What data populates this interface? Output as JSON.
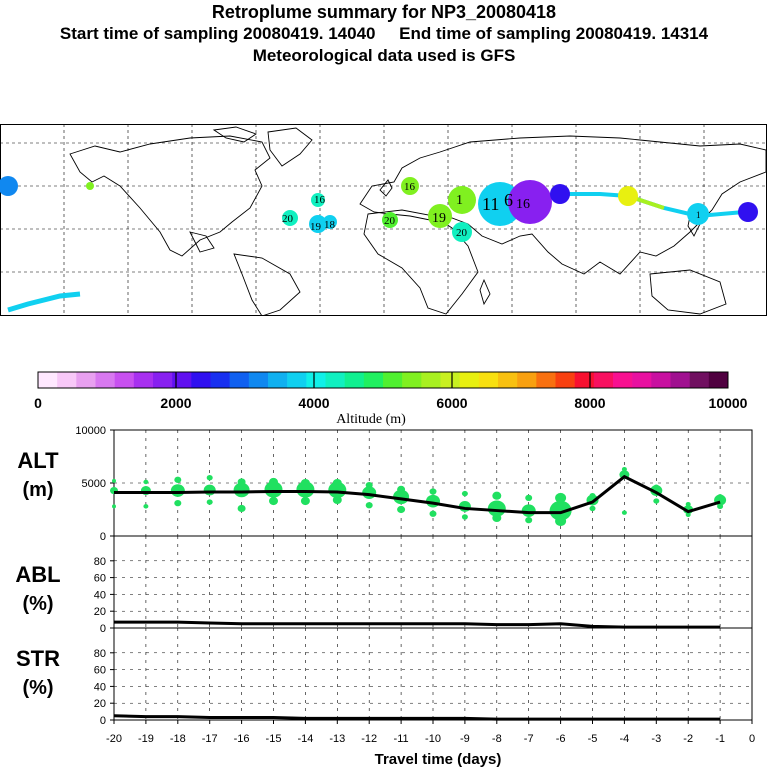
{
  "header": {
    "title": "Retroplume summary for NP3_20080418",
    "sampling": "Start time of sampling 20080419. 14040     End time of sampling 20080419. 14314",
    "met": "Meteorological data used is GFS"
  },
  "colors": {
    "scale": [
      "#ffe8ff",
      "#f8c8f8",
      "#e8a0f0",
      "#d878f0",
      "#c850f0",
      "#a830f0",
      "#8820f0",
      "#6010f0",
      "#3010f0",
      "#1830f0",
      "#1060f0",
      "#1088f0",
      "#10b0f0",
      "#10d0f0",
      "#10f0e8",
      "#10f0c0",
      "#10f090",
      "#20f060",
      "#50f030",
      "#80f020",
      "#a8f020",
      "#c8f020",
      "#e8f010",
      "#f8e010",
      "#f8c010",
      "#f8a010",
      "#f87010",
      "#f84010",
      "#f81030",
      "#f81060",
      "#f81090",
      "#e810a0",
      "#c810a0",
      "#a01090",
      "#701060",
      "#500040"
    ],
    "plume": "#20e060",
    "line": "#000000"
  },
  "map_labels": [
    "16",
    "20",
    "19",
    "18",
    "20",
    "16",
    "19",
    "1",
    "11",
    "6",
    "16",
    "1",
    "20"
  ],
  "chart_data": [
    {
      "type": "colorbar",
      "title": "Altitude (m)",
      "tick_labels": [
        "0",
        "2000",
        "4000",
        "6000",
        "8000",
        "10000"
      ],
      "range": [
        0,
        10000
      ]
    },
    {
      "type": "scatter",
      "panel_label": [
        "ALT",
        "(m)"
      ],
      "ylim": [
        0,
        10000
      ],
      "yticks": [
        "0",
        "5000",
        "10000"
      ],
      "x": [
        -20,
        -19,
        -18,
        -17,
        -16,
        -15,
        -14,
        -13,
        -12,
        -11,
        -10,
        -9,
        -8,
        -7,
        -6,
        -5,
        -4,
        -3,
        -2,
        -1
      ],
      "mean_altitude": [
        4100,
        4100,
        4100,
        4150,
        4150,
        4200,
        4200,
        4150,
        3900,
        3500,
        3100,
        2600,
        2400,
        2200,
        2200,
        3200,
        5600,
        4100,
        2300,
        3200
      ],
      "upper_altitude": [
        5200,
        5100,
        5300,
        5500,
        5100,
        5100,
        5000,
        5000,
        4800,
        4400,
        4200,
        4000,
        3800,
        3600,
        3600,
        3800,
        6300,
        4600,
        3000,
        3700
      ],
      "lower_altitude": [
        2800,
        2800,
        3100,
        3200,
        2600,
        3300,
        3300,
        3400,
        2900,
        2500,
        2100,
        1800,
        1700,
        1500,
        1400,
        2600,
        2200,
        3300,
        2000,
        2800
      ],
      "point_sizes": [
        4,
        5,
        7,
        6,
        8,
        9,
        9,
        9,
        7,
        8,
        7,
        6,
        9,
        7,
        11,
        6,
        5,
        6,
        5,
        6
      ]
    },
    {
      "type": "line",
      "panel_label": [
        "ABL",
        "(%)"
      ],
      "ylim": [
        0,
        100
      ],
      "yticks": [
        "0",
        "20",
        "40",
        "60",
        "80"
      ],
      "x": [
        -20,
        -19,
        -18,
        -17,
        -16,
        -15,
        -14,
        -13,
        -12,
        -11,
        -10,
        -9,
        -8,
        -7,
        -6,
        -5,
        -4,
        -3,
        -2,
        -1
      ],
      "values": [
        7,
        7,
        7,
        6,
        5,
        5,
        5,
        5,
        5,
        5,
        5,
        5,
        4,
        4,
        5,
        2,
        1,
        1,
        1,
        1
      ]
    },
    {
      "type": "line",
      "panel_label": [
        "STR",
        "(%)"
      ],
      "ylim": [
        0,
        100
      ],
      "yticks": [
        "0",
        "20",
        "40",
        "60",
        "80"
      ],
      "x": [
        -20,
        -19,
        -18,
        -17,
        -16,
        -15,
        -14,
        -13,
        -12,
        -11,
        -10,
        -9,
        -8,
        -7,
        -6,
        -5,
        -4,
        -3,
        -2,
        -1
      ],
      "values": [
        5,
        4,
        4,
        3,
        3,
        3,
        2,
        2,
        2,
        2,
        2,
        2,
        1,
        1,
        1,
        1,
        1,
        1,
        1,
        1
      ],
      "xlabel": "Travel time (days)",
      "xtick_labels": [
        "-20",
        "-19",
        "-18",
        "-17",
        "-16",
        "-15",
        "-14",
        "-13",
        "-12",
        "-11",
        "-10",
        "-9",
        "-8",
        "-7",
        "-6",
        "-5",
        "-4",
        "-3",
        "-2",
        "-1",
        "0"
      ]
    }
  ]
}
